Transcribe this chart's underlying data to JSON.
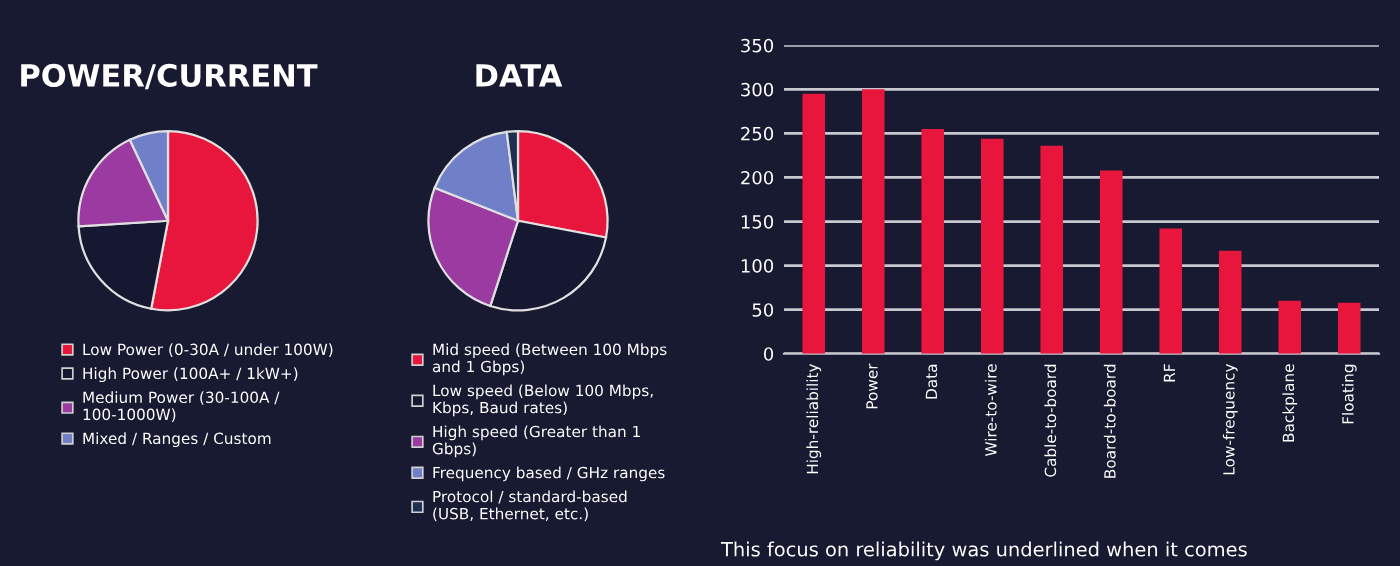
{
  "chart_data": [
    {
      "type": "pie",
      "title": "POWER/CURRENT",
      "categories": [
        "Low Power (0-30A / under 100W)",
        "High Power (100A+ / 1kW+)",
        "Medium Power (30-100A / 100-1000W)",
        "Mixed / Ranges / Custom"
      ],
      "values": [
        53,
        21,
        19,
        7
      ],
      "colors": [
        "#e8163c",
        "#151830",
        "#9b3aa0",
        "#7080c8"
      ],
      "legend": "bottom"
    },
    {
      "type": "pie",
      "title": "DATA",
      "categories": [
        "Mid speed (Between 100 Mbps and 1 Gbps)",
        "Low speed (Below 100 Mbps, Kbps, Baud rates)",
        "High speed (Greater than 1 Gbps)",
        "Frequency based / GHz ranges",
        "Protocol / standard-based (USB, Ethernet, etc.)"
      ],
      "values": [
        28,
        27,
        26,
        17,
        2
      ],
      "colors": [
        "#e8163c",
        "#151830",
        "#9b3aa0",
        "#7080c8",
        "#1c3050"
      ],
      "legend": "bottom"
    },
    {
      "type": "bar",
      "categories": [
        "High-reliability",
        "Power",
        "Data",
        "Wire-to-wire",
        "Cable-to-board",
        "Board-to-board",
        "RF",
        "Low-frequency",
        "Backplane",
        "Floating"
      ],
      "values": [
        295,
        300,
        255,
        244,
        236,
        208,
        142,
        117,
        60,
        58
      ],
      "color": "#e8163c",
      "ylim": [
        0,
        350
      ],
      "yticks": [
        0,
        50,
        100,
        150,
        200,
        250,
        300,
        350
      ],
      "grid": "y",
      "annotations": [
        "This focus on reliability was underlined when it comes"
      ]
    }
  ]
}
